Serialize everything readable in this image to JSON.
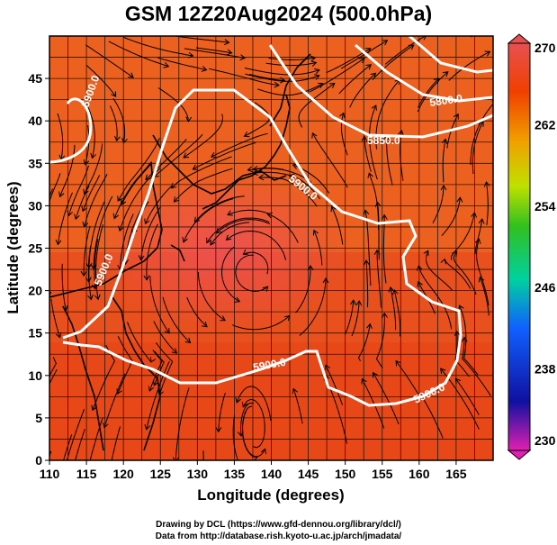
{
  "title": "GSM 12Z20Aug2024 (500.0hPa)",
  "footer": {
    "line1": "Drawing by DCL (https://www.gfd-dennou.org/library/dcl/)",
    "line2": "Data from http://database.rish.kyoto-u.ac.jp/arch/jmadata/"
  },
  "chart_data": {
    "type": "heatmap",
    "title": "GSM 12Z20Aug2024 (500.0hPa)",
    "xlabel": "Longitude (degrees)",
    "ylabel": "Latitude  (degrees)",
    "xlim": [
      110,
      170
    ],
    "ylim": [
      0,
      50
    ],
    "xticks": [
      110,
      115,
      120,
      125,
      130,
      135,
      140,
      145,
      150,
      155,
      160,
      165
    ],
    "yticks": [
      0,
      5,
      10,
      15,
      20,
      25,
      30,
      35,
      40,
      45
    ],
    "grid": true,
    "colorbar": {
      "ticks": [
        230,
        238,
        246,
        254,
        262,
        270
      ],
      "min": 230,
      "max": 270,
      "colors": [
        "#e020b0",
        "#1010a0",
        "#1060ff",
        "#00d0a0",
        "#30c020",
        "#c0e000",
        "#f0a000",
        "#f04000",
        "#e85050"
      ]
    },
    "fields": {
      "shading": "temperature (K)",
      "contours": "geopotential height (m)",
      "vectors": "streamlines"
    },
    "contour_labels": [
      "5900.0",
      "5900.0",
      "5900.0",
      "5900.0",
      "5900.0",
      "5850.0",
      "5800.0"
    ],
    "colors": {
      "background_field": "#e8501e",
      "contour": "#ffffff",
      "coast": "#000000"
    }
  }
}
